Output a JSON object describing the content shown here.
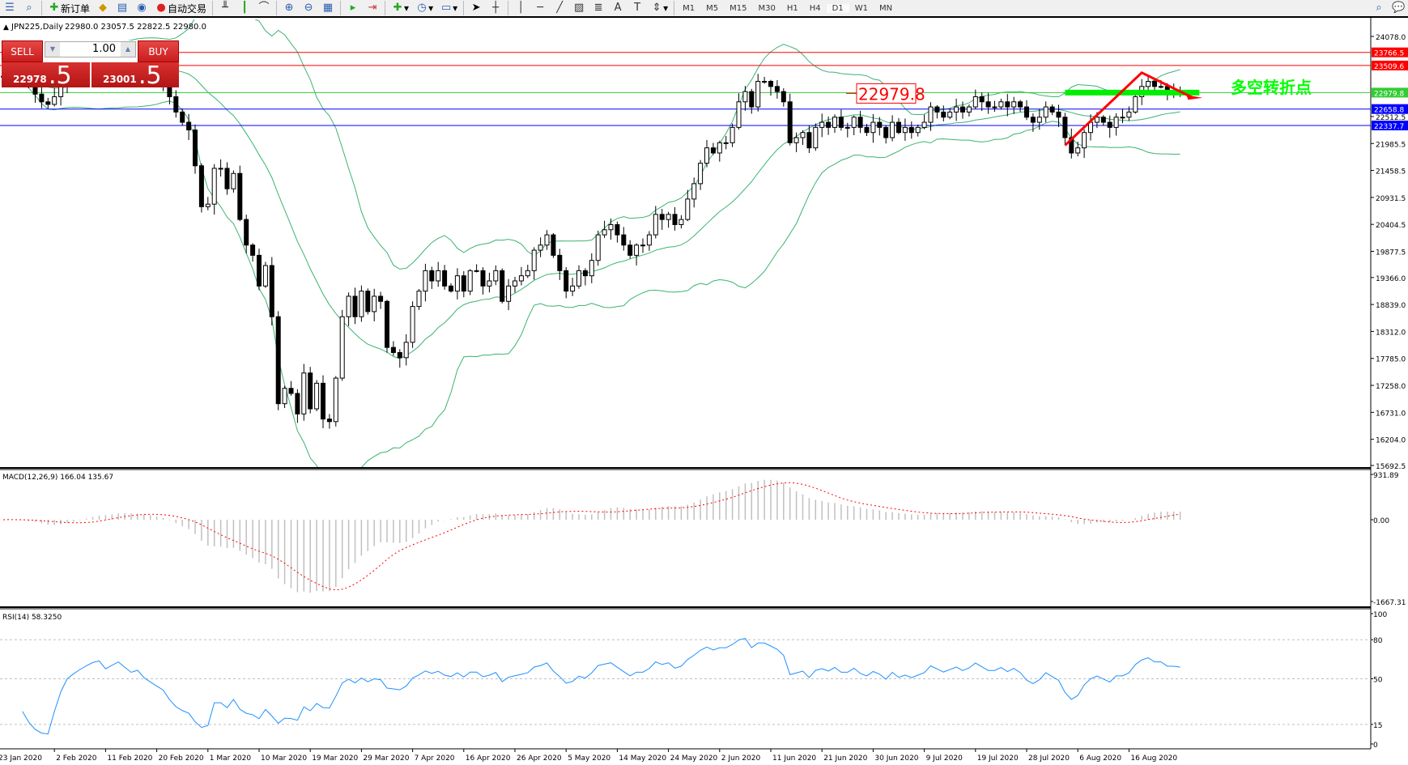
{
  "toolbar": {
    "new_order": "新订单",
    "auto_trading": "自动交易",
    "timeframes": [
      "M1",
      "M5",
      "M15",
      "M30",
      "H1",
      "H4",
      "D1",
      "W1",
      "MN"
    ],
    "active_timeframe": "D1"
  },
  "chart_header": {
    "symbol": "JPN225,Daily",
    "ohlc": "22980.0 23057.5 22822.5 22980.0"
  },
  "trade_panel": {
    "sell_label": "SELL",
    "buy_label": "BUY",
    "lot": "1.00",
    "sell_main": "22978",
    "sell_frac": ".5",
    "buy_main": "23001",
    "buy_frac": ".5"
  },
  "annotation": {
    "text": "多空转折点",
    "price_label": "22979.8",
    "color": "#00ff00"
  },
  "indicators": {
    "macd_label": "MACD(12,26,9) 166.04 135.67",
    "rsi_label": "RSI(14) 58.3250"
  },
  "chart_data": {
    "type": "candlestick",
    "symbol": "JPN225",
    "timeframe": "Daily",
    "ylim": [
      15692.5,
      24078.0
    ],
    "price_ticks": [
      "24078.0",
      "21985.5",
      "21458.5",
      "20931.5",
      "20404.5",
      "19877.5",
      "19366.0",
      "18839.0",
      "18312.0",
      "17785.0",
      "17258.0",
      "16731.0",
      "16204.0",
      "15692.5",
      "22512.5"
    ],
    "date_labels": [
      "23 Jan 2020",
      "2 Feb 2020",
      "11 Feb 2020",
      "20 Feb 2020",
      "1 Mar 2020",
      "10 Mar 2020",
      "19 Mar 2020",
      "29 Mar 2020",
      "7 Apr 2020",
      "16 Apr 2020",
      "26 Apr 2020",
      "5 May 2020",
      "14 May 2020",
      "24 May 2020",
      "2 Jun 2020",
      "11 Jun 2020",
      "21 Jun 2020",
      "30 Jun 2020",
      "9 Jul 2020",
      "19 Jul 2020",
      "28 Jul 2020",
      "6 Aug 2020",
      "16 Aug 2020"
    ],
    "closes": [
      23300,
      23350,
      23250,
      23200,
      23100,
      22950,
      22800,
      22750,
      22900,
      23100,
      23300,
      23400,
      23500,
      23600,
      23700,
      23750,
      23600,
      23700,
      23800,
      23700,
      23600,
      23650,
      23500,
      23400,
      23300,
      23200,
      22900,
      22600,
      22400,
      22250,
      21550,
      20750,
      20800,
      21500,
      21500,
      21100,
      21400,
      20500,
      20000,
      19800,
      19200,
      19600,
      18600,
      16900,
      17200,
      17100,
      16700,
      17500,
      16800,
      17300,
      16600,
      16550,
      17400,
      18600,
      19000,
      18600,
      19100,
      18700,
      19000,
      18900,
      18000,
      17900,
      17800,
      18100,
      18800,
      19100,
      19500,
      19300,
      19500,
      19200,
      19100,
      19400,
      19100,
      19500,
      19500,
      19200,
      19300,
      19500,
      18900,
      19200,
      19300,
      19400,
      19500,
      19900,
      20000,
      20200,
      19800,
      19500,
      19100,
      19200,
      19500,
      19400,
      19700,
      20200,
      20300,
      20400,
      20200,
      20000,
      19800,
      20000,
      20000,
      20200,
      20600,
      20500,
      20600,
      20400,
      20500,
      20900,
      21200,
      21600,
      21900,
      21800,
      22000,
      22000,
      22300,
      22800,
      23000,
      22700,
      23200,
      23200,
      23100,
      23000,
      22800,
      22000,
      22100,
      22200,
      21900,
      22300,
      22400,
      22300,
      22500,
      22300,
      22300,
      22500,
      22300,
      22200,
      22400,
      22300,
      22100,
      22400,
      22200,
      22300,
      22200,
      22300,
      22400,
      22700,
      22600,
      22500,
      22600,
      22700,
      22600,
      22700,
      22900,
      22800,
      22700,
      22700,
      22800,
      22700,
      22800,
      22700,
      22500,
      22400,
      22500,
      22700,
      22600,
      22500,
      22100,
      21800,
      21900,
      22200,
      22400,
      22500,
      22400,
      22300,
      22500,
      22500,
      22600,
      22900,
      23100,
      23200,
      23100,
      23100,
      23000,
      23000,
      22980
    ],
    "hlines": [
      {
        "price": 23766.5,
        "label": "23766.5",
        "color": "#ff0000"
      },
      {
        "price": 23509.6,
        "label": "23509.6",
        "color": "#ff0000"
      },
      {
        "price": 22979.8,
        "label": "22979.8",
        "color": "#33cc33"
      },
      {
        "price": 22658.8,
        "label": "22658.8",
        "color": "#0000ff"
      },
      {
        "price": 22337.7,
        "label": "22337.7",
        "color": "#0000ff"
      }
    ],
    "overlays": [
      "Bollinger Bands(20,2)"
    ],
    "band_color": "#3cb371",
    "macd": {
      "ticks": [
        "931.89",
        "0.00",
        "-1667.31"
      ],
      "range": [
        -1667.31,
        931.89
      ],
      "signal_color": "#ff0000",
      "hist_color": "#c0c0c0"
    },
    "rsi": {
      "ticks": [
        "100",
        "80",
        "50",
        "15",
        "0"
      ],
      "levels": [
        80,
        50,
        15
      ],
      "color": "#1e90ff"
    }
  }
}
